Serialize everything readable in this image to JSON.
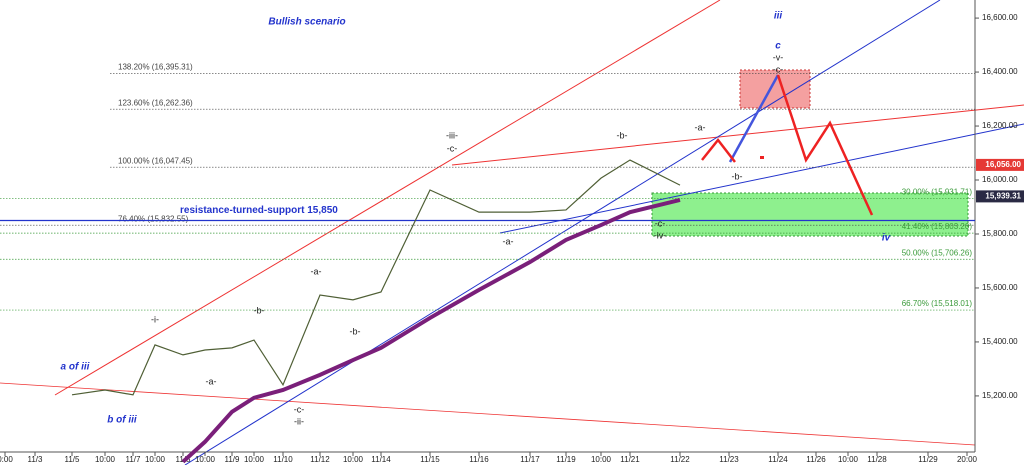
{
  "chart_data": {
    "type": "line",
    "title": "Bullish scenario",
    "x": [
      "0:00",
      "11/3",
      "11/5",
      "10:00",
      "11/7",
      "10:00",
      "11/8",
      "10:00",
      "11/9",
      "10:00",
      "11/10",
      "11/12",
      "10:00",
      "11/14",
      "11/15",
      "11/16",
      "11/17",
      "11/19",
      "10:00",
      "11/21",
      "11/22",
      "11/23",
      "11/24",
      "11/26",
      "10:00",
      "11/28",
      "11/29",
      "20:00"
    ],
    "series": [
      {
        "color": "#4f5f35",
        "values": [
          null,
          null,
          15204,
          15222,
          15204,
          15389,
          15352,
          15370,
          15378,
          15407,
          15241,
          15574,
          15556,
          15585,
          15963,
          15881,
          15881,
          15889,
          16007,
          16074,
          15981,
          null,
          null,
          null,
          null,
          null,
          null,
          null
        ]
      },
      {
        "color": "#7a1f7a",
        "values": [
          null,
          null,
          null,
          null,
          null,
          null,
          14956,
          15030,
          15141,
          15193,
          15222,
          15278,
          15333,
          15378,
          15489,
          15593,
          15696,
          15778,
          15833,
          15881,
          15926,
          null,
          null,
          null,
          null,
          null,
          null,
          null
        ]
      }
    ],
    "ylim": [
      14944,
      16667
    ],
    "yticks": [
      {
        "value": 15200,
        "label": "15,200.00"
      },
      {
        "value": 15400,
        "label": "15,400.00"
      },
      {
        "value": 15600,
        "label": "15,600.00"
      },
      {
        "value": 15800,
        "label": "15,800.00"
      },
      {
        "value": 16000,
        "label": "16,000.00"
      },
      {
        "value": 16200,
        "label": "16,200.00"
      },
      {
        "value": 16400,
        "label": "16,400.00"
      },
      {
        "value": 16600,
        "label": "16,600.00"
      }
    ],
    "fib_levels": [
      {
        "label": "138.20% (16,395.31)",
        "value": 16395.31,
        "side": "left"
      },
      {
        "label": "123.60% (16,262.36)",
        "value": 16262.36,
        "side": "left"
      },
      {
        "label": "100.00% (16,047.45)",
        "value": 16047.45,
        "side": "left"
      },
      {
        "label": "76.40% (15,832.55)",
        "value": 15832.55,
        "side": "left"
      },
      {
        "label": "30.00% (15,931.71)",
        "value": 15931.71,
        "side": "right"
      },
      {
        "label": "41.40% (15,803.20)",
        "value": 15803.2,
        "side": "right"
      },
      {
        "label": "50.00% (15,706.26)",
        "value": 15706.26,
        "side": "right"
      },
      {
        "label": "66.70% (15,518.01)",
        "value": 15518.01,
        "side": "right"
      }
    ],
    "support": {
      "label": "resistance-turned-support 15,850",
      "value": 15850
    },
    "price_tags": [
      {
        "label": "16,056.00",
        "value": 16056,
        "color": "#e53935"
      },
      {
        "label": "15,939.31",
        "value": 15939.31,
        "color": "#2a2a44"
      }
    ],
    "wave_labels": [
      "a of iii",
      "b of iii",
      "-i-",
      "-a-",
      "-b-",
      "-a-",
      "-b-",
      "-c-",
      "-ii-",
      "-iii-",
      "-c-",
      "-a-",
      "-b-",
      "-a-",
      "-c-",
      "-iv-",
      "-b-",
      "iii",
      "c",
      "-v-",
      "-c-",
      "iv"
    ]
  }
}
